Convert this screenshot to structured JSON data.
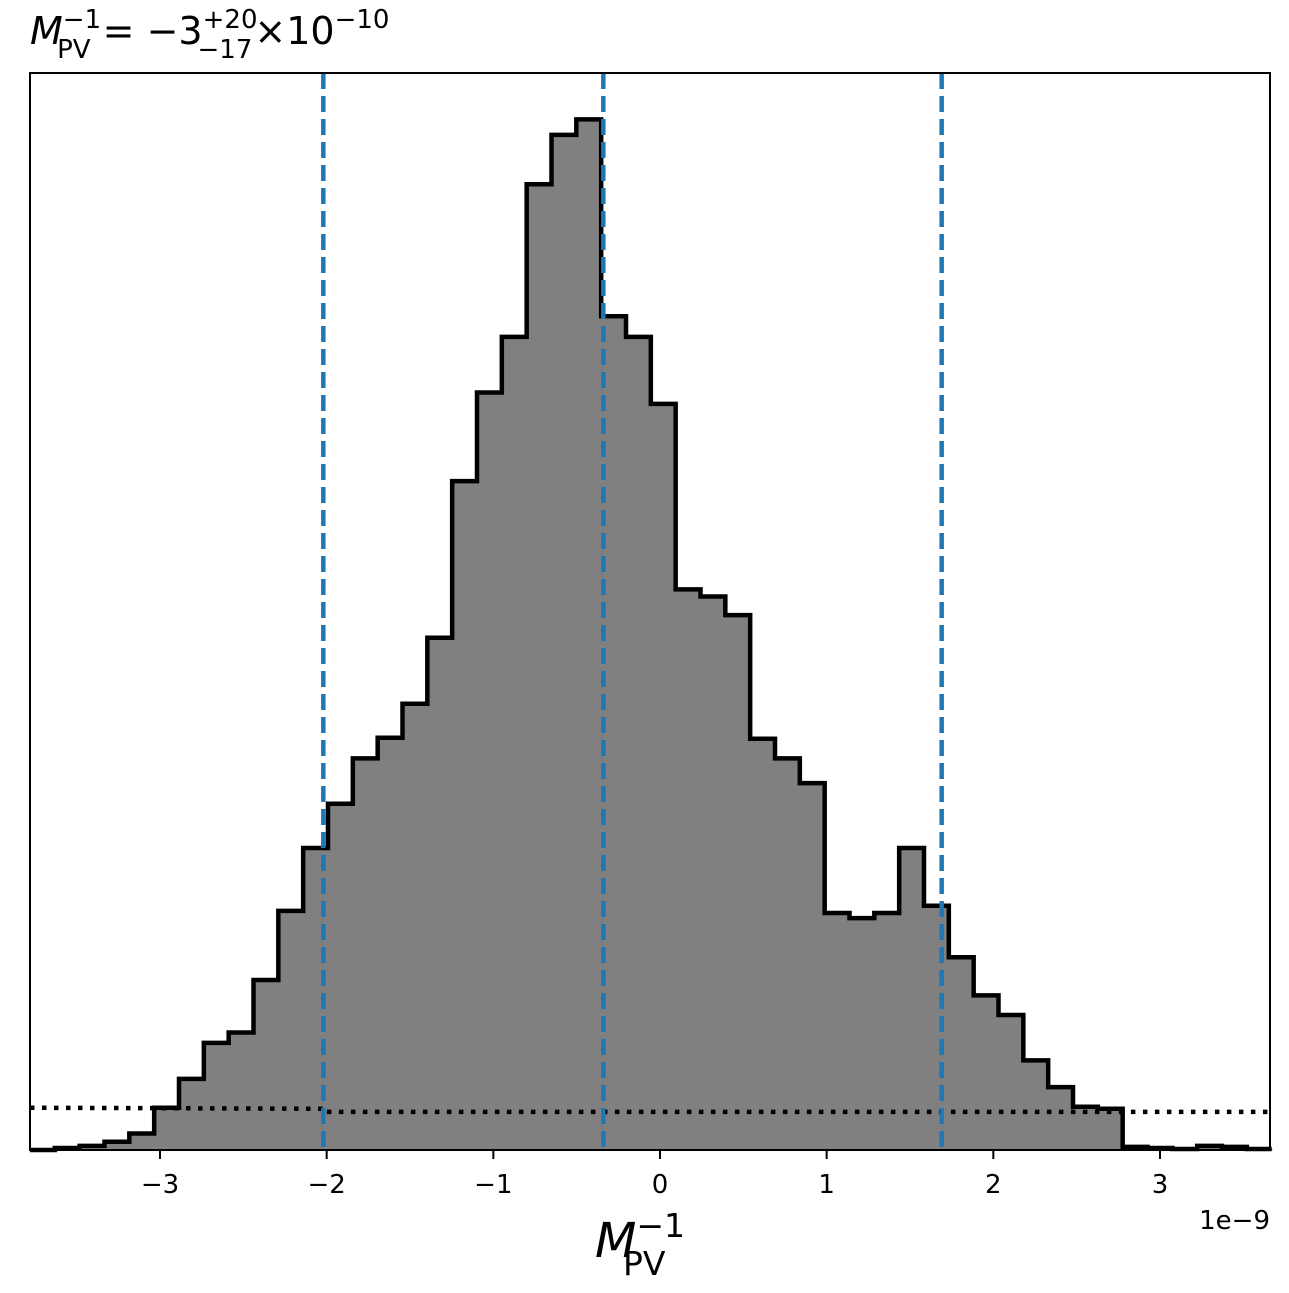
{
  "chart_data": {
    "type": "histogram",
    "title": {
      "symbol": "M",
      "symbol_sup": "−1",
      "symbol_sub": "PV",
      "equals": " = ",
      "value": "−3",
      "err_plus": "+20",
      "err_minus": "−17",
      "times": "×",
      "base": "10",
      "exponent": "−10"
    },
    "xlabel": {
      "symbol": "M",
      "sup": "−1",
      "sub": "PV"
    },
    "offset_text": "1e−9",
    "x_unit_scale": 1e-09,
    "xlim": [
      -3.78,
      3.66
    ],
    "ylim": [
      0,
      1.045
    ],
    "xticks": [
      -3,
      -2,
      -1,
      0,
      1,
      2,
      3
    ],
    "xtick_labels": [
      "−3",
      "−2",
      "−1",
      "0",
      "1",
      "2",
      "3"
    ],
    "bin_start": -3.78,
    "bin_width": 0.149,
    "counts": [
      0.0,
      0.002,
      0.004,
      0.008,
      0.016,
      0.041,
      0.069,
      0.104,
      0.114,
      0.165,
      0.232,
      0.293,
      0.336,
      0.38,
      0.4,
      0.433,
      0.497,
      0.649,
      0.735,
      0.789,
      0.937,
      0.985,
      1.0,
      0.809,
      0.789,
      0.724,
      0.544,
      0.537,
      0.519,
      0.399,
      0.38,
      0.356,
      0.23,
      0.225,
      0.23,
      0.293,
      0.237,
      0.187,
      0.15,
      0.131,
      0.087,
      0.061,
      0.042,
      0.04,
      0.003,
      0.002,
      0.001,
      0.004,
      0.003,
      0.001,
      0.001
    ],
    "quantile_lines": [
      -2.02,
      -0.34,
      1.69
    ],
    "quantile_color": "#1f77b4",
    "fill_color": "#808080",
    "edge_color": "#000000",
    "prior_line": {
      "style": "dotted",
      "x": [
        -3.78,
        -2.02,
        -2.02,
        3.66
      ],
      "y": [
        0.041,
        0.04,
        0.037,
        0.037
      ]
    }
  }
}
